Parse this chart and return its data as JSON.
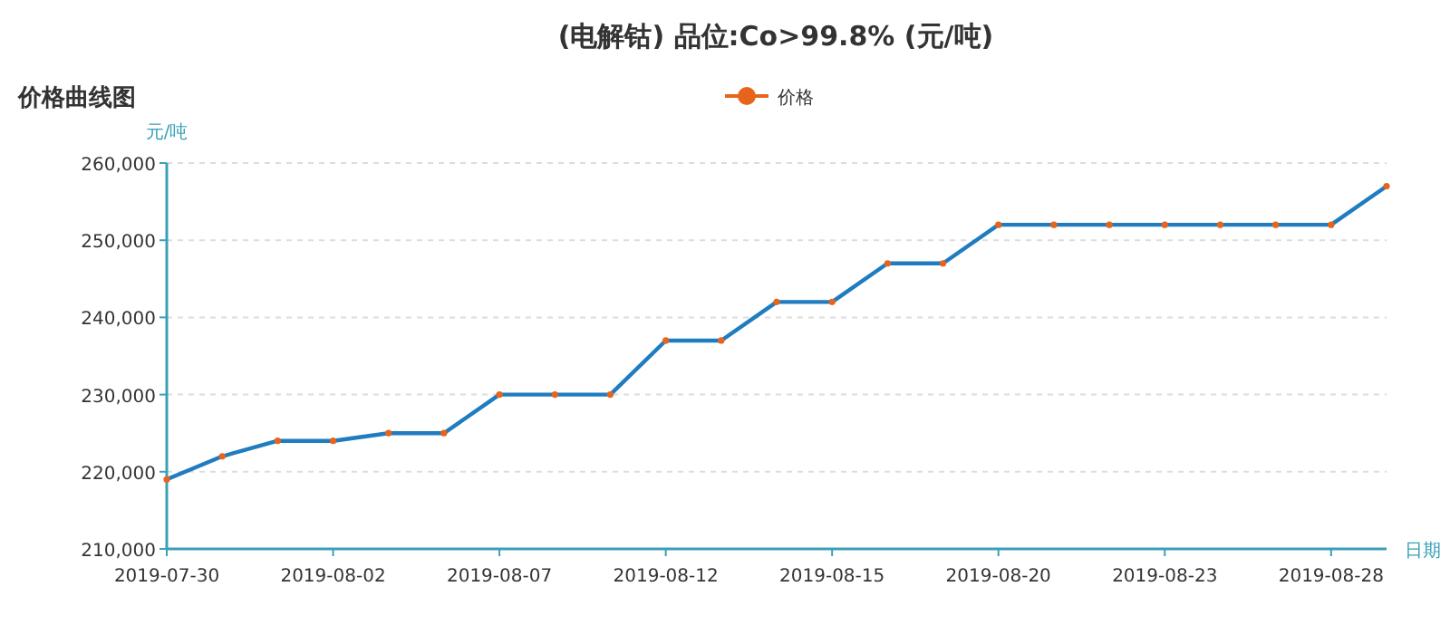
{
  "chart_data": {
    "type": "line",
    "title": "(电解钴) 品位:Co>99.8%  (元/吨)",
    "subtitle": "价格曲线图",
    "xlabel": "日期",
    "ylabel": "元/吨",
    "categories": [
      "2019-07-30",
      null,
      null,
      "2019-08-02",
      null,
      null,
      "2019-08-07",
      null,
      null,
      "2019-08-12",
      null,
      null,
      "2019-08-15",
      null,
      null,
      "2019-08-20",
      null,
      null,
      "2019-08-23",
      null,
      null,
      "2019-08-28",
      null
    ],
    "series": [
      {
        "name": "价格",
        "color": "#1f7cc0",
        "values": [
          219000,
          222000,
          224000,
          224000,
          225000,
          225000,
          230000,
          230000,
          230000,
          237000,
          237000,
          242000,
          242000,
          247000,
          247000,
          252000,
          252000,
          252000,
          252000,
          252000,
          252000,
          252000,
          257000
        ]
      }
    ],
    "ylim": [
      210000,
      260000
    ],
    "yticks": [
      {
        "value": 210000,
        "label": "210,000"
      },
      {
        "value": 220000,
        "label": "220,000"
      },
      {
        "value": 230000,
        "label": "230,000"
      },
      {
        "value": 240000,
        "label": "240,000"
      },
      {
        "value": 250000,
        "label": "250,000"
      },
      {
        "value": 260000,
        "label": "260,000"
      }
    ],
    "grid": "y",
    "legend": "top",
    "marker": "circle",
    "line_style": "solid"
  }
}
